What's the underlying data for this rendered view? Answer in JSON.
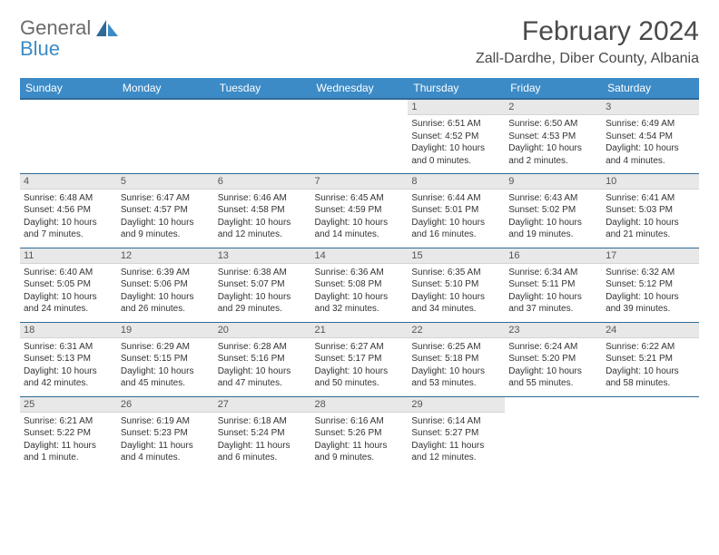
{
  "brand": {
    "word1": "General",
    "word2": "Blue",
    "gray": "#6b6b6b",
    "blue": "#3c8bc6"
  },
  "title": "February 2024",
  "location": "Zall-Dardhe, Diber County, Albania",
  "header_bg": "#3c8bc6",
  "header_border": "#2f6a96",
  "daynum_bg": "#e8e8e8",
  "weekdays": [
    "Sunday",
    "Monday",
    "Tuesday",
    "Wednesday",
    "Thursday",
    "Friday",
    "Saturday"
  ],
  "weeks": [
    [
      null,
      null,
      null,
      null,
      {
        "n": "1",
        "r": "6:51 AM",
        "s": "4:52 PM",
        "d": "10 hours and 0 minutes."
      },
      {
        "n": "2",
        "r": "6:50 AM",
        "s": "4:53 PM",
        "d": "10 hours and 2 minutes."
      },
      {
        "n": "3",
        "r": "6:49 AM",
        "s": "4:54 PM",
        "d": "10 hours and 4 minutes."
      }
    ],
    [
      {
        "n": "4",
        "r": "6:48 AM",
        "s": "4:56 PM",
        "d": "10 hours and 7 minutes."
      },
      {
        "n": "5",
        "r": "6:47 AM",
        "s": "4:57 PM",
        "d": "10 hours and 9 minutes."
      },
      {
        "n": "6",
        "r": "6:46 AM",
        "s": "4:58 PM",
        "d": "10 hours and 12 minutes."
      },
      {
        "n": "7",
        "r": "6:45 AM",
        "s": "4:59 PM",
        "d": "10 hours and 14 minutes."
      },
      {
        "n": "8",
        "r": "6:44 AM",
        "s": "5:01 PM",
        "d": "10 hours and 16 minutes."
      },
      {
        "n": "9",
        "r": "6:43 AM",
        "s": "5:02 PM",
        "d": "10 hours and 19 minutes."
      },
      {
        "n": "10",
        "r": "6:41 AM",
        "s": "5:03 PM",
        "d": "10 hours and 21 minutes."
      }
    ],
    [
      {
        "n": "11",
        "r": "6:40 AM",
        "s": "5:05 PM",
        "d": "10 hours and 24 minutes."
      },
      {
        "n": "12",
        "r": "6:39 AM",
        "s": "5:06 PM",
        "d": "10 hours and 26 minutes."
      },
      {
        "n": "13",
        "r": "6:38 AM",
        "s": "5:07 PM",
        "d": "10 hours and 29 minutes."
      },
      {
        "n": "14",
        "r": "6:36 AM",
        "s": "5:08 PM",
        "d": "10 hours and 32 minutes."
      },
      {
        "n": "15",
        "r": "6:35 AM",
        "s": "5:10 PM",
        "d": "10 hours and 34 minutes."
      },
      {
        "n": "16",
        "r": "6:34 AM",
        "s": "5:11 PM",
        "d": "10 hours and 37 minutes."
      },
      {
        "n": "17",
        "r": "6:32 AM",
        "s": "5:12 PM",
        "d": "10 hours and 39 minutes."
      }
    ],
    [
      {
        "n": "18",
        "r": "6:31 AM",
        "s": "5:13 PM",
        "d": "10 hours and 42 minutes."
      },
      {
        "n": "19",
        "r": "6:29 AM",
        "s": "5:15 PM",
        "d": "10 hours and 45 minutes."
      },
      {
        "n": "20",
        "r": "6:28 AM",
        "s": "5:16 PM",
        "d": "10 hours and 47 minutes."
      },
      {
        "n": "21",
        "r": "6:27 AM",
        "s": "5:17 PM",
        "d": "10 hours and 50 minutes."
      },
      {
        "n": "22",
        "r": "6:25 AM",
        "s": "5:18 PM",
        "d": "10 hours and 53 minutes."
      },
      {
        "n": "23",
        "r": "6:24 AM",
        "s": "5:20 PM",
        "d": "10 hours and 55 minutes."
      },
      {
        "n": "24",
        "r": "6:22 AM",
        "s": "5:21 PM",
        "d": "10 hours and 58 minutes."
      }
    ],
    [
      {
        "n": "25",
        "r": "6:21 AM",
        "s": "5:22 PM",
        "d": "11 hours and 1 minute."
      },
      {
        "n": "26",
        "r": "6:19 AM",
        "s": "5:23 PM",
        "d": "11 hours and 4 minutes."
      },
      {
        "n": "27",
        "r": "6:18 AM",
        "s": "5:24 PM",
        "d": "11 hours and 6 minutes."
      },
      {
        "n": "28",
        "r": "6:16 AM",
        "s": "5:26 PM",
        "d": "11 hours and 9 minutes."
      },
      {
        "n": "29",
        "r": "6:14 AM",
        "s": "5:27 PM",
        "d": "11 hours and 12 minutes."
      },
      null,
      null
    ]
  ],
  "labels": {
    "sunrise": "Sunrise: ",
    "sunset": "Sunset: ",
    "daylight": "Daylight: "
  }
}
